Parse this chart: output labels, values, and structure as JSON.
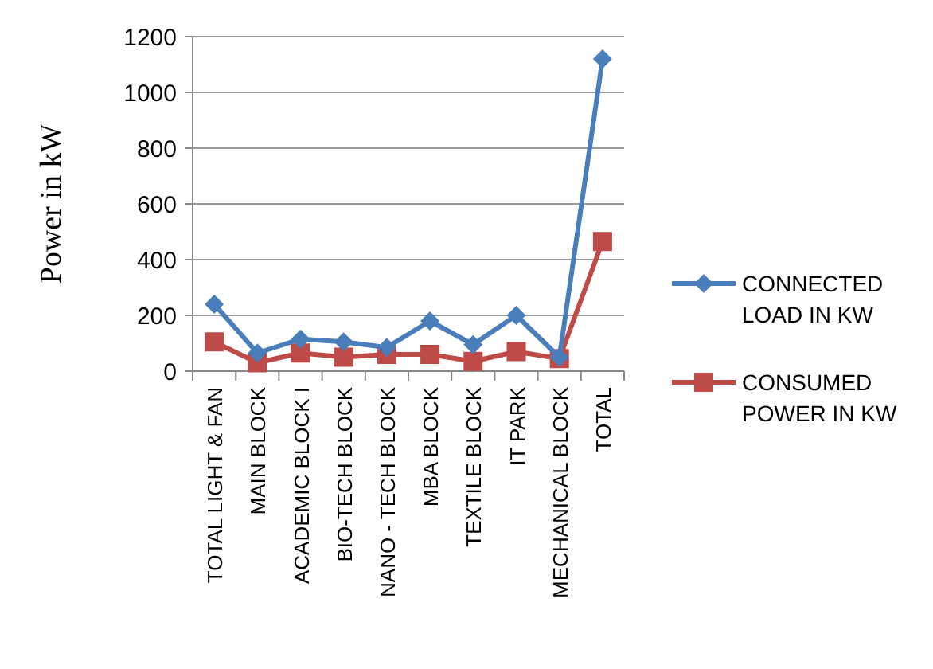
{
  "chart_data": {
    "type": "line",
    "ylabel": "Power in kW",
    "categories": [
      "TOTAL LIGHT & FAN",
      "MAIN BLOCK",
      "ACADEMIC BLOCK I",
      "BIO-TECH BLOCK",
      "NANO - TECH BLOCK",
      "MBA BLOCK",
      "TEXTILE BLOCK",
      "IT PARK",
      "MECHANICAL BLOCK",
      "TOTAL"
    ],
    "series": [
      {
        "name": "CONNECTED LOAD IN KW",
        "color": "#4a7ebb",
        "marker": "diamond",
        "values": [
          240,
          65,
          115,
          105,
          85,
          180,
          95,
          200,
          50,
          1120
        ]
      },
      {
        "name": "CONSUMED POWER IN KW",
        "color": "#be4b48",
        "marker": "square",
        "values": [
          105,
          30,
          65,
          50,
          60,
          60,
          35,
          70,
          45,
          465
        ]
      }
    ],
    "ylim": [
      0,
      1200
    ],
    "yticks": [
      0,
      200,
      400,
      600,
      800,
      1000,
      1200
    ],
    "grid": "y",
    "legend": "right"
  }
}
